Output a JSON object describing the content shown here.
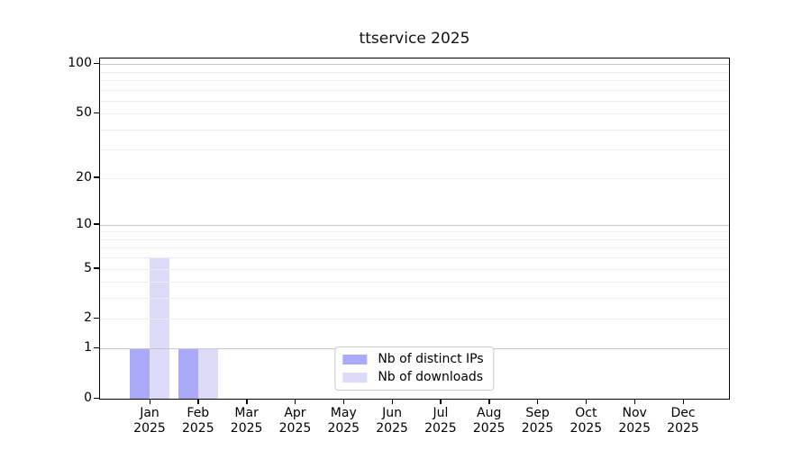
{
  "figure": {
    "background": "#ffffff"
  },
  "chart_data": {
    "type": "bar",
    "title": "ttservice 2025",
    "categories": [
      "Jan",
      "Feb",
      "Mar",
      "Apr",
      "May",
      "Jun",
      "Jul",
      "Aug",
      "Sep",
      "Oct",
      "Nov",
      "Dec"
    ],
    "category_year": "2025",
    "series": [
      {
        "name": "Nb of distinct IPs",
        "color": "#aaaaf8",
        "values": [
          1,
          1,
          0,
          0,
          0,
          0,
          0,
          0,
          0,
          0,
          0,
          0
        ]
      },
      {
        "name": "Nb of downloads",
        "color": "#dcdcf9",
        "values": [
          6,
          1,
          0,
          0,
          0,
          0,
          0,
          0,
          0,
          0,
          0,
          0
        ]
      }
    ],
    "yscale": "log1p",
    "ylim": [
      0,
      108
    ],
    "yticks": [
      0,
      1,
      2,
      5,
      10,
      20,
      50,
      100
    ],
    "major_gridlines": [
      1,
      10,
      100
    ],
    "minor_gridlines": [
      2,
      3,
      4,
      5,
      6,
      7,
      8,
      9,
      20,
      30,
      40,
      50,
      60,
      70,
      80,
      90
    ],
    "legend_position": "lower center",
    "grid": true,
    "colors": {
      "major_grid": "#c6c6c6",
      "minor_grid": "#ededed",
      "spine": "#000000",
      "text": "#000000",
      "title_text": "#111111",
      "legend_border": "#cccccc",
      "legend_background": "#ffffff"
    }
  }
}
